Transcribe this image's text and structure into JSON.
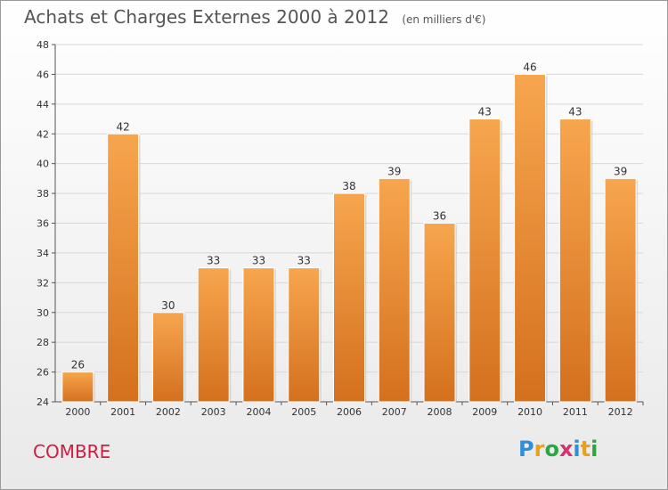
{
  "header": {
    "title": "Achats et Charges Externes 2000 à 2012",
    "subtitle": "(en milliers d'€)"
  },
  "footer": {
    "commune": "COMBRE",
    "logo_text": "Proxiti"
  },
  "colors": {
    "bar_top": "#f7a64e",
    "bar_bottom": "#d4701e",
    "title": "#555555",
    "commune": "#cc1d45"
  },
  "chart_data": {
    "type": "bar",
    "title": "Achats et Charges Externes 2000 à 2012",
    "subtitle": "(en milliers d'€)",
    "categories": [
      "2000",
      "2001",
      "2002",
      "2003",
      "2004",
      "2005",
      "2006",
      "2007",
      "2008",
      "2009",
      "2010",
      "2011",
      "2012"
    ],
    "values": [
      26,
      42,
      30,
      33,
      33,
      33,
      38,
      39,
      36,
      43,
      46,
      43,
      39
    ],
    "ylim": [
      24,
      48
    ],
    "yticks": [
      24,
      26,
      28,
      30,
      32,
      34,
      36,
      38,
      40,
      42,
      44,
      46,
      48
    ],
    "grid": true,
    "data_labels": true
  }
}
